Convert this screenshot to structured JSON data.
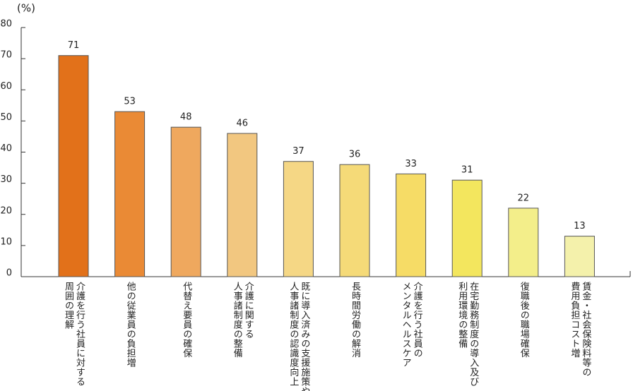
{
  "chart_data": {
    "type": "bar",
    "y_label": "(%)",
    "categories": [
      "介護を行う社員に対する\n周囲の理解",
      "他の従業員の負担増",
      "代替え要員の確保",
      "介護に関する\n人事諸制度の整備",
      "既に導入済みの支援施策や\n人事諸制度の認識度向上",
      "長時間労働の解消",
      "介護を行う社員の\nメンタルヘルスケア",
      "在宅勤務制度の導入及び\n利用環境の整備",
      "復職後の職場確保",
      "賃金・社会保険料等の\n費用負担コスト増"
    ],
    "values": [
      71,
      53,
      48,
      46,
      37,
      36,
      33,
      31,
      22,
      13
    ],
    "colors": [
      "#e2711a",
      "#ea8a35",
      "#efa85e",
      "#f2c780",
      "#f5d785",
      "#f5da78",
      "#f6dc66",
      "#f3e65e",
      "#f3ee8a",
      "#f4f1ab"
    ],
    "ylim": [
      0,
      80
    ],
    "yticks": [
      0,
      10,
      20,
      30,
      40,
      50,
      60,
      70,
      80
    ]
  }
}
